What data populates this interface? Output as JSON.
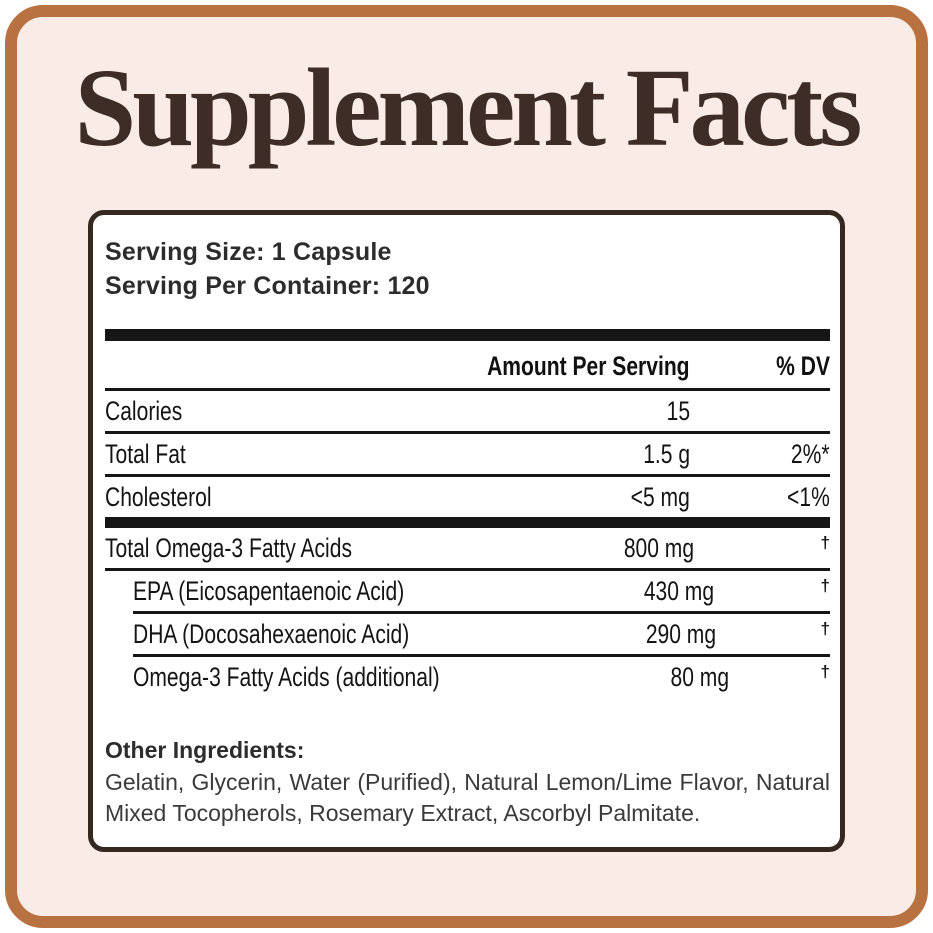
{
  "title": "Supplement Facts",
  "colors": {
    "frame_border": "#b87140",
    "background": "#f9ece7",
    "title_text": "#3e2d26",
    "panel_border": "#35281e",
    "panel_background": "#ffffff",
    "rule_black": "#161616",
    "body_text": "#141414"
  },
  "panel": {
    "serving_size": "Serving Size: 1 Capsule",
    "serving_per_container": "Serving Per Container: 120",
    "header": {
      "amount": "Amount Per Serving",
      "dv": "% DV"
    },
    "rows": [
      {
        "name": "Calories",
        "amount": "15",
        "dv": ""
      },
      {
        "name": "Total Fat",
        "amount": "1.5 g",
        "dv": "2%*"
      },
      {
        "name": "Cholesterol",
        "amount": "<5 mg",
        "dv": "<1%"
      },
      {
        "name": "Total Omega-3 Fatty Acids",
        "amount": "800 mg",
        "dv": "†"
      },
      {
        "name": "EPA (Eicosapentaenoic Acid)",
        "amount": "430 mg",
        "dv": "†"
      },
      {
        "name": "DHA (Docosahexaenoic Acid)",
        "amount": "290 mg",
        "dv": "†"
      },
      {
        "name": "Omega-3 Fatty Acids (additional)",
        "amount": "80 mg",
        "dv": "†"
      }
    ],
    "other_ingredients_label": "Other Ingredients:",
    "other_ingredients_text": "Gelatin, Glycerin, Water (Purified), Natural Lemon/Lime Flavor, Natural Mixed Tocopherols, Rosemary Extract, Ascorbyl Palmitate."
  }
}
